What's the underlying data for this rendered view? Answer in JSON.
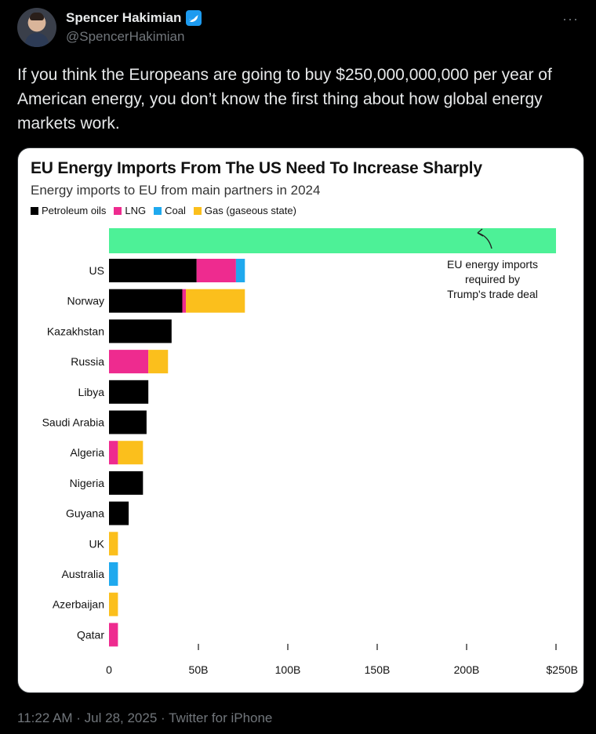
{
  "tweet": {
    "display_name": "Spencer Hakimian",
    "handle": "@SpencerHakimian",
    "text": "If you think the Europeans are going to buy $250,000,000,000 per year of American energy, you don’t know the first thing about how global energy markets work.",
    "timestamp": "11:22 AM · Jul 28, 2025 · Twitter for iPhone",
    "more_icon": "more-icon"
  },
  "colors": {
    "petroleum": "#000000",
    "lng": "#ee2b8f",
    "coal": "#1fa9ee",
    "gas": "#fbbf1c",
    "target": "#4df197"
  },
  "chart_data": {
    "type": "bar",
    "orientation": "horizontal",
    "stacked": true,
    "title": "EU Energy Imports From The US Need To Increase Sharply",
    "subtitle": "Energy imports to EU from main partners in 2024",
    "categories": [
      "US",
      "Norway",
      "Kazakhstan",
      "Russia",
      "Libya",
      "Saudi Arabia",
      "Algeria",
      "Nigeria",
      "Guyana",
      "UK",
      "Australia",
      "Azerbaijan",
      "Qatar"
    ],
    "series": [
      {
        "name": "Petroleum oils",
        "values": [
          49,
          41,
          35,
          0,
          22,
          21,
          0,
          19,
          11,
          0,
          0,
          0,
          0
        ]
      },
      {
        "name": "LNG",
        "values": [
          22,
          2,
          0,
          22,
          0,
          0,
          5,
          0,
          0,
          0,
          0,
          0,
          5
        ]
      },
      {
        "name": "Coal",
        "values": [
          5,
          0,
          0,
          0,
          0,
          0,
          0,
          0,
          0,
          0,
          5,
          0,
          0
        ]
      },
      {
        "name": "Gas (gaseous state)",
        "values": [
          0,
          33,
          0,
          11,
          0,
          0,
          14,
          0,
          0,
          5,
          0,
          5,
          0
        ]
      }
    ],
    "target": {
      "value": 250,
      "annotation": "EU energy imports required by Trump's trade deal",
      "annotation_lines": [
        "EU energy imports",
        "required by",
        "Trump's trade deal"
      ]
    },
    "xlim": [
      0,
      250
    ],
    "xticks": [
      0,
      50,
      100,
      150,
      200,
      250
    ],
    "xtick_labels": [
      "0",
      "50B",
      "100B",
      "150B",
      "200B",
      "$250B"
    ],
    "legend_position": "top-left"
  }
}
